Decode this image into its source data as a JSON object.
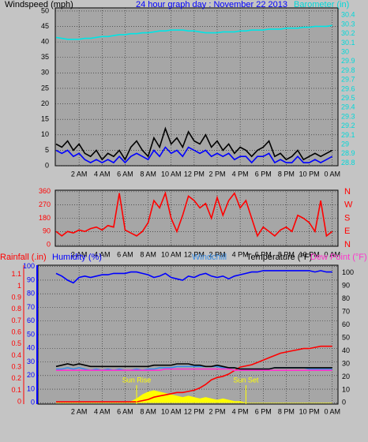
{
  "chart_data": [
    {
      "type": "line",
      "title": "24 hour graph day : November 22 2013",
      "ylabel": "Windspeed (mph)",
      "y2label": "Barometer (in)",
      "x": [
        0,
        0.5,
        1,
        1.5,
        2,
        2.5,
        3,
        3.5,
        4,
        4.5,
        5,
        5.5,
        6,
        6.5,
        7,
        7.5,
        8,
        8.5,
        9,
        9.5,
        10,
        10.5,
        11,
        11.5,
        12,
        12.5,
        13,
        13.5,
        14,
        14.5,
        15,
        15.5,
        16,
        16.5,
        17,
        17.5,
        18,
        18.5,
        19,
        19.5,
        20,
        20.5,
        21,
        21.5,
        22,
        22.5,
        23,
        23.5,
        24
      ],
      "xlim": [
        0,
        24.5
      ],
      "xticks": [
        {
          "value": 2,
          "label": "2 AM"
        },
        {
          "value": 4,
          "label": "4 AM"
        },
        {
          "value": 6,
          "label": "6 AM"
        },
        {
          "value": 8,
          "label": "8 AM"
        },
        {
          "value": 10,
          "label": "10 AM"
        },
        {
          "value": 12,
          "label": "12 PM"
        },
        {
          "value": 14,
          "label": "2 PM"
        },
        {
          "value": 16,
          "label": "4 PM"
        },
        {
          "value": 18,
          "label": "6 PM"
        },
        {
          "value": 20,
          "label": "8 PM"
        },
        {
          "value": 22,
          "label": "10 PM"
        },
        {
          "value": 24,
          "label": "0 AM"
        }
      ],
      "ylim": [
        0,
        51
      ],
      "yticks": [
        0,
        5,
        10,
        15,
        20,
        25,
        30,
        35,
        40,
        45,
        50
      ],
      "y2lim": [
        28.77,
        30.48
      ],
      "y2ticks": [
        28.8,
        28.9,
        29,
        29.1,
        29.2,
        29.3,
        29.4,
        29.5,
        29.6,
        29.7,
        29.8,
        29.9,
        30,
        30.1,
        30.2,
        30.3,
        30.4
      ],
      "grid": true,
      "series": [
        {
          "color": "#000000",
          "axis": "y",
          "values": [
            7,
            6,
            8,
            5,
            7,
            4,
            3,
            5,
            2,
            4,
            3,
            5,
            2,
            6,
            8,
            5,
            3,
            9,
            6,
            12,
            7,
            9,
            6,
            11,
            8,
            7,
            10,
            6,
            8,
            5,
            7,
            4,
            6,
            5,
            3,
            5,
            6,
            8,
            3,
            4,
            2,
            3,
            5,
            2,
            3,
            4,
            3,
            4,
            5
          ]
        },
        {
          "color": "#0000ff",
          "axis": "y",
          "values": [
            5,
            4,
            5,
            3,
            4,
            2,
            1,
            2,
            1,
            2,
            1,
            3,
            1,
            3,
            4,
            3,
            2,
            5,
            3,
            6,
            4,
            5,
            3,
            6,
            5,
            4,
            5,
            3,
            4,
            3,
            4,
            2,
            3,
            3,
            1,
            3,
            3,
            4,
            1,
            2,
            1,
            1,
            3,
            1,
            1,
            2,
            1,
            2,
            3
          ]
        },
        {
          "color": "#00e5e5",
          "axis": "y2",
          "values": [
            30.16,
            30.15,
            30.14,
            30.14,
            30.14,
            30.15,
            30.15,
            30.16,
            30.17,
            30.17,
            30.18,
            30.19,
            30.19,
            30.2,
            30.2,
            30.21,
            30.21,
            30.22,
            30.23,
            30.23,
            30.24,
            30.24,
            30.24,
            30.23,
            30.23,
            30.22,
            30.21,
            30.21,
            30.21,
            30.22,
            30.22,
            30.22,
            30.23,
            30.23,
            30.24,
            30.24,
            30.24,
            30.25,
            30.25,
            30.25,
            30.26,
            30.26,
            30.26,
            30.27,
            30.27,
            30.28,
            30.28,
            30.28,
            30.29
          ]
        }
      ]
    },
    {
      "type": "line",
      "x": [
        0,
        0.5,
        1,
        1.5,
        2,
        2.5,
        3,
        3.5,
        4,
        4.5,
        5,
        5.5,
        6,
        6.5,
        7,
        7.5,
        8,
        8.5,
        9,
        9.5,
        10,
        10.5,
        11,
        11.5,
        12,
        12.5,
        13,
        13.5,
        14,
        14.5,
        15,
        15.5,
        16,
        16.5,
        17,
        17.5,
        18,
        18.5,
        19,
        19.5,
        20,
        20.5,
        21,
        21.5,
        22,
        22.5,
        23,
        23.5,
        24
      ],
      "xlim": [
        0,
        24.5
      ],
      "xticks": [
        {
          "value": 2,
          "label": "2 AM"
        },
        {
          "value": 4,
          "label": "4 AM"
        },
        {
          "value": 6,
          "label": "6 AM"
        },
        {
          "value": 8,
          "label": "8 AM"
        },
        {
          "value": 10,
          "label": "10 AM"
        },
        {
          "value": 12,
          "label": "12 PM"
        },
        {
          "value": 14,
          "label": "2 PM"
        },
        {
          "value": 16,
          "label": "4 PM"
        },
        {
          "value": 18,
          "label": "6 PM"
        },
        {
          "value": 20,
          "label": "8 PM"
        },
        {
          "value": 22,
          "label": "10 PM"
        },
        {
          "value": 24,
          "label": "0 AM"
        }
      ],
      "ylim": [
        -10,
        370
      ],
      "yticks": [
        0,
        90,
        180,
        270,
        360
      ],
      "y2lim": [
        -10,
        370
      ],
      "y2ticks": [
        {
          "value": 360,
          "label": "N"
        },
        {
          "value": 270,
          "label": "W"
        },
        {
          "value": 180,
          "label": "S"
        },
        {
          "value": 90,
          "label": "E"
        },
        {
          "value": 0,
          "label": "N"
        }
      ],
      "grid": true,
      "series": [
        {
          "color": "#ff0000",
          "axis": "y",
          "values": [
            90,
            60,
            90,
            80,
            100,
            90,
            110,
            120,
            100,
            130,
            120,
            350,
            100,
            80,
            60,
            90,
            150,
            300,
            250,
            350,
            180,
            90,
            200,
            330,
            300,
            250,
            280,
            180,
            320,
            200,
            300,
            350,
            250,
            300,
            180,
            60,
            120,
            90,
            60,
            100,
            120,
            90,
            200,
            180,
            150,
            90,
            300,
            60,
            90
          ]
        }
      ]
    },
    {
      "type": "line",
      "x": [
        0,
        0.5,
        1,
        1.5,
        2,
        2.5,
        3,
        3.5,
        4,
        4.5,
        5,
        5.5,
        6,
        6.5,
        7,
        7.5,
        8,
        8.5,
        9,
        9.5,
        10,
        10.5,
        11,
        11.5,
        12,
        12.5,
        13,
        13.5,
        14,
        14.5,
        15,
        15.5,
        16,
        16.5,
        17,
        17.5,
        18,
        18.5,
        19,
        19.5,
        20,
        20.5,
        21,
        21.5,
        22,
        22.5,
        23,
        23.5,
        24
      ],
      "xlim": [
        0,
        24.5
      ],
      "xticks": [
        {
          "value": 2,
          "label": "2 AM"
        },
        {
          "value": 4,
          "label": "4 AM"
        },
        {
          "value": 6,
          "label": "6 AM"
        },
        {
          "value": 8,
          "label": "8 AM"
        },
        {
          "value": 10,
          "label": "10 AM"
        },
        {
          "value": 12,
          "label": "12 PM"
        },
        {
          "value": 14,
          "label": "2 PM"
        },
        {
          "value": 16,
          "label": "4 PM"
        },
        {
          "value": 18,
          "label": "6 PM"
        },
        {
          "value": 20,
          "label": "8 PM"
        },
        {
          "value": 22,
          "label": "10 PM"
        },
        {
          "value": 24,
          "label": "0 AM"
        }
      ],
      "ylim": [
        -1,
        101
      ],
      "yticks": [
        0,
        10,
        20,
        30,
        40,
        50,
        60,
        70,
        80,
        90,
        100
      ],
      "y2lim": [
        -1,
        106
      ],
      "y2ticks": [
        0,
        10,
        20,
        30,
        40,
        50,
        60,
        70,
        80,
        90,
        100
      ],
      "y3lim": [
        -0.02,
        1.18
      ],
      "y3ticks": [
        0,
        0.1,
        0.2,
        0.3,
        0.4,
        0.5,
        0.6,
        0.7,
        0.8,
        0.9,
        1,
        1.1
      ],
      "grid": true,
      "annotations": [
        {
          "text": "Sun Rise",
          "x": 7
        },
        {
          "text": "Sun Set",
          "x": 16.5
        }
      ],
      "series": [
        {
          "color": "#ffff00",
          "axis": "y",
          "fill": true,
          "values": [
            0,
            0,
            0,
            0,
            0,
            0,
            0,
            0,
            0,
            0,
            0,
            0,
            0,
            1,
            3,
            6,
            8,
            9,
            8,
            7,
            6,
            5,
            4,
            5,
            4,
            3,
            4,
            3,
            2,
            3,
            2,
            1,
            1,
            0,
            0,
            0,
            0,
            0,
            0,
            0,
            0,
            0,
            0,
            0,
            0,
            0,
            0,
            0,
            0
          ]
        },
        {
          "name": "Rainfall (.in)",
          "color": "#ff0000",
          "axis": "y3",
          "values": [
            0,
            0,
            0,
            0,
            0,
            0,
            0,
            0,
            0,
            0,
            0,
            0,
            0,
            0,
            0,
            0.01,
            0.02,
            0.04,
            0.05,
            0.06,
            0.07,
            0.08,
            0.08,
            0.09,
            0.1,
            0.12,
            0.15,
            0.19,
            0.21,
            0.22,
            0.24,
            0.27,
            0.3,
            0.31,
            0.32,
            0.34,
            0.36,
            0.38,
            0.4,
            0.42,
            0.43,
            0.44,
            0.45,
            0.46,
            0.46,
            0.47,
            0.48,
            0.48,
            0.48
          ]
        },
        {
          "name": "Humidity (%)",
          "color": "#0000ff",
          "axis": "y",
          "values": [
            95,
            93,
            90,
            88,
            92,
            93,
            92,
            93,
            94,
            94,
            95,
            95,
            95,
            96,
            96,
            95,
            94,
            92,
            93,
            95,
            92,
            91,
            90,
            93,
            92,
            94,
            95,
            93,
            92,
            93,
            91,
            93,
            94,
            95,
            96,
            96,
            97,
            97,
            97,
            97,
            97,
            97,
            97,
            97,
            97,
            96,
            97,
            96,
            96
          ]
        },
        {
          "name": "Windchill",
          "color": "#3a8ee6",
          "axis": "y2",
          "values": [
            26,
            26,
            27,
            26,
            27,
            26,
            25,
            26,
            25,
            26,
            25,
            26,
            25,
            25,
            26,
            25,
            26,
            26,
            27,
            27,
            27,
            28,
            28,
            28,
            28,
            28,
            28,
            28,
            28,
            27,
            27,
            27,
            26,
            26,
            26,
            26,
            26,
            26,
            27,
            27,
            27,
            27,
            27,
            27,
            26,
            26,
            26,
            26,
            26
          ]
        },
        {
          "name": "Temperature (°F)",
          "color": "#000000",
          "axis": "y2",
          "values": [
            28,
            29,
            30,
            29,
            30,
            29,
            28,
            28,
            28,
            28,
            28,
            28,
            28,
            28,
            28,
            28,
            28,
            29,
            29,
            29,
            29,
            30,
            30,
            30,
            29,
            29,
            28,
            28,
            29,
            28,
            27,
            27,
            26,
            26,
            26,
            26,
            26,
            26,
            27,
            27,
            27,
            27,
            27,
            27,
            27,
            27,
            27,
            27,
            27
          ]
        },
        {
          "name": "Dew Point (°F)",
          "color": "#ff33cc",
          "axis": "y2",
          "values": [
            25,
            25,
            25,
            25,
            25,
            25,
            25,
            25,
            25,
            25,
            25,
            25,
            25,
            25,
            25,
            25,
            25,
            25,
            25,
            26,
            26,
            26,
            26,
            26,
            26,
            26,
            26,
            26,
            26,
            26,
            26,
            25,
            25,
            25,
            25,
            25,
            25,
            25,
            25,
            25,
            25,
            25,
            25,
            25,
            25,
            25,
            25,
            25,
            25
          ]
        }
      ]
    }
  ]
}
